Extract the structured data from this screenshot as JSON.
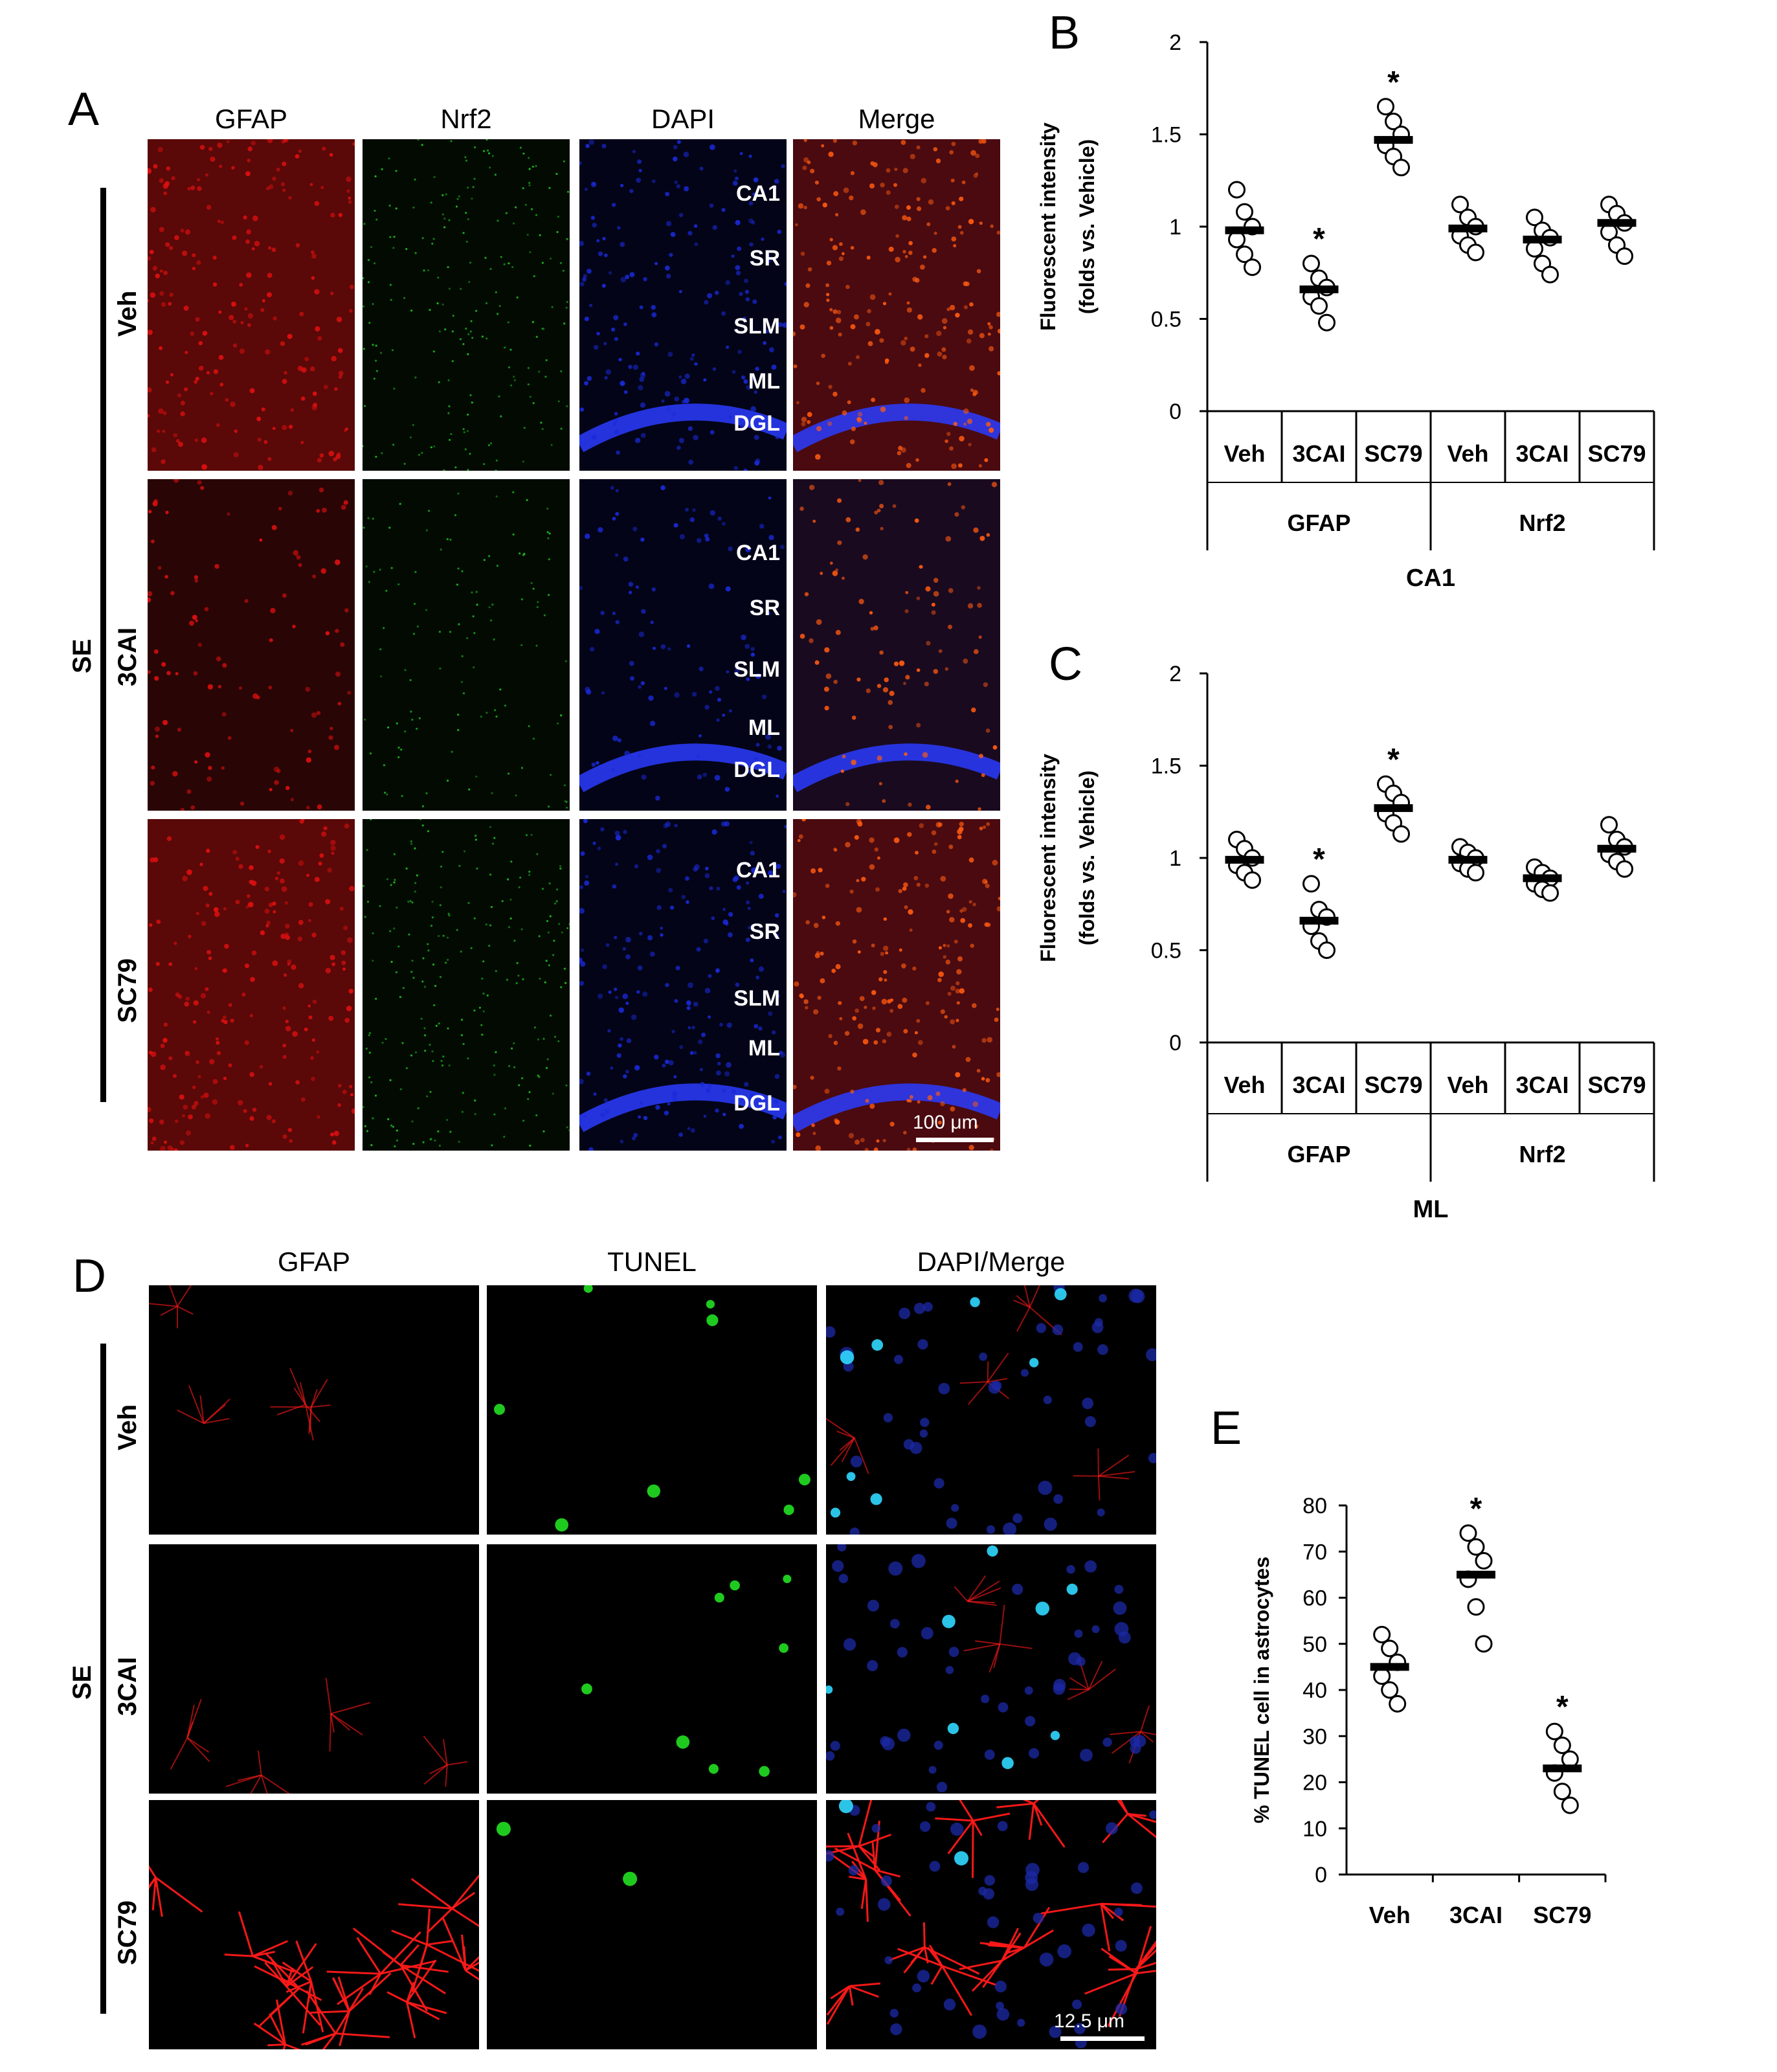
{
  "panelA": {
    "letter": "A",
    "columns": [
      "GFAP",
      "Nrf2",
      "DAPI",
      "Merge"
    ],
    "group_label": "SE",
    "rows": [
      "Veh",
      "3CAI",
      "SC79"
    ],
    "regions": [
      "CA1",
      "SR",
      "SLM",
      "ML",
      "DGL"
    ],
    "scale_bar": "100 μm",
    "channel_colors": {
      "GFAP": "#e01010",
      "Nrf2": "#20c020",
      "DAPI": "#1a2ad8",
      "Merge": "#ff5a10"
    }
  },
  "panelD": {
    "letter": "D",
    "columns": [
      "GFAP",
      "TUNEL",
      "DAPI/Merge"
    ],
    "group_label": "SE",
    "rows": [
      "Veh",
      "3CAI",
      "SC79"
    ],
    "scale_bar": "12.5 μm"
  },
  "panelE_letter": "E",
  "chart_data": [
    {
      "id": "B",
      "letter": "B",
      "type": "scatter",
      "ylabel": [
        "Fluorescent intensity",
        "(folds vs. Vehicle)"
      ],
      "ylim": [
        0,
        2
      ],
      "yticks": [
        "0",
        "0.5",
        "1",
        "1.5",
        "2"
      ],
      "categories": [
        "Veh",
        "3CAI",
        "SC79",
        "Veh",
        "3CAI",
        "SC79"
      ],
      "groups": [
        "GFAP",
        "Nrf2"
      ],
      "region": "CA1",
      "means": [
        0.98,
        0.66,
        1.47,
        0.99,
        0.93,
        1.02
      ],
      "points": [
        [
          1.2,
          1.08,
          1.0,
          0.93,
          0.85,
          0.78
        ],
        [
          0.8,
          0.72,
          0.67,
          0.62,
          0.57,
          0.48
        ],
        [
          1.65,
          1.57,
          1.5,
          1.44,
          1.38,
          1.32
        ],
        [
          1.12,
          1.05,
          1.0,
          0.95,
          0.9,
          0.86
        ],
        [
          1.05,
          0.98,
          0.94,
          0.88,
          0.8,
          0.74
        ],
        [
          1.12,
          1.07,
          1.02,
          0.97,
          0.9,
          0.84
        ]
      ],
      "significant": [
        false,
        true,
        true,
        false,
        false,
        false
      ],
      "significance_marker": "*"
    },
    {
      "id": "C",
      "letter": "C",
      "type": "scatter",
      "ylabel": [
        "Fluorescent intensity",
        "(folds vs. Vehicle)"
      ],
      "ylim": [
        0,
        2
      ],
      "yticks": [
        "0",
        "0.5",
        "1",
        "1.5",
        "2"
      ],
      "categories": [
        "Veh",
        "3CAI",
        "SC79",
        "Veh",
        "3CAI",
        "SC79"
      ],
      "groups": [
        "GFAP",
        "Nrf2"
      ],
      "region": "ML",
      "means": [
        0.99,
        0.66,
        1.27,
        0.99,
        0.89,
        1.05
      ],
      "points": [
        [
          1.1,
          1.05,
          1.0,
          0.96,
          0.92,
          0.88
        ],
        [
          0.86,
          0.72,
          0.68,
          0.63,
          0.55,
          0.5
        ],
        [
          1.4,
          1.35,
          1.3,
          1.24,
          1.19,
          1.13
        ],
        [
          1.06,
          1.03,
          1.0,
          0.97,
          0.94,
          0.92
        ],
        [
          0.95,
          0.92,
          0.89,
          0.86,
          0.83,
          0.81
        ],
        [
          1.18,
          1.1,
          1.06,
          1.02,
          0.98,
          0.94
        ]
      ],
      "significant": [
        false,
        true,
        true,
        false,
        false,
        false
      ],
      "significance_marker": "*"
    },
    {
      "id": "E",
      "letter": "E",
      "type": "scatter",
      "ylabel": [
        "% TUNEL cell in astrocytes"
      ],
      "ylim": [
        0,
        80
      ],
      "yticks": [
        "0",
        "10",
        "20",
        "30",
        "40",
        "50",
        "60",
        "70",
        "80"
      ],
      "categories": [
        "Veh",
        "3CAI",
        "SC79"
      ],
      "means": [
        45,
        65,
        23
      ],
      "points": [
        [
          52,
          49,
          46,
          43,
          40,
          37
        ],
        [
          74,
          71,
          68,
          64,
          58,
          50
        ],
        [
          31,
          28,
          25,
          22,
          18,
          15
        ]
      ],
      "significant": [
        false,
        true,
        true
      ],
      "significance_marker": "*"
    }
  ]
}
